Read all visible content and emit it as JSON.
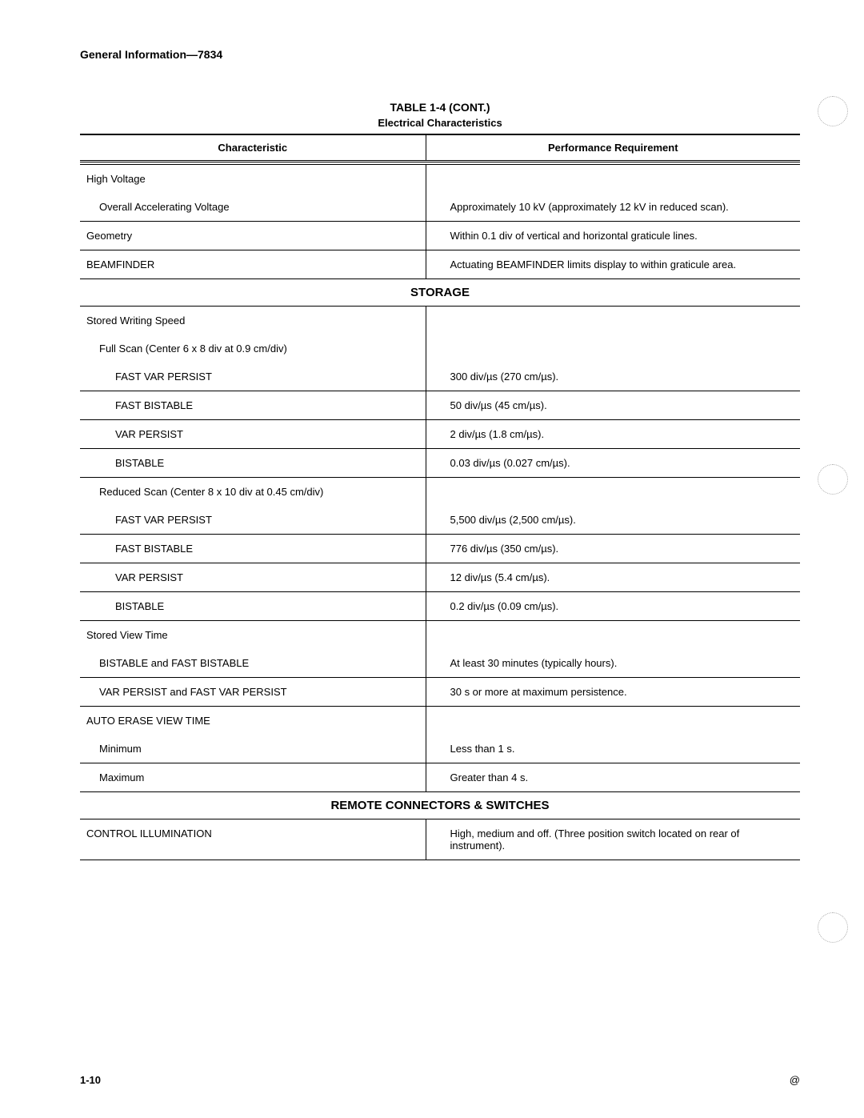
{
  "header": "General Information—7834",
  "table_title": "TABLE 1-4 (CONT.)",
  "table_subtitle": "Electrical Characteristics",
  "col_headers": [
    "Characteristic",
    "Performance Requirement"
  ],
  "sections": [
    {
      "rows": [
        {
          "c": "High Voltage",
          "r": "",
          "indent": 0,
          "noborder": true
        },
        {
          "c": "Overall Accelerating Voltage",
          "r": "Approximately 10 kV (approximately 12 kV in reduced scan).",
          "indent": 1
        },
        {
          "c": "Geometry",
          "r": "Within 0.1 div of vertical and horizontal graticule lines.",
          "indent": 0
        },
        {
          "c": "BEAMFINDER",
          "r": "Actuating BEAMFINDER limits display to within graticule area.",
          "indent": 0
        }
      ]
    },
    {
      "title": "STORAGE",
      "rows": [
        {
          "c": "Stored Writing Speed",
          "r": "",
          "indent": 0,
          "noborder": true
        },
        {
          "c": "Full Scan (Center 6 x 8 div at 0.9 cm/div)",
          "r": "",
          "indent": 1,
          "noborder": true
        },
        {
          "c": "FAST VAR PERSIST",
          "r": "300 div/µs (270 cm/µs).",
          "indent": 2
        },
        {
          "c": "FAST BISTABLE",
          "r": "50 div/µs (45 cm/µs).",
          "indent": 2
        },
        {
          "c": "VAR PERSIST",
          "r": "2 div/µs (1.8 cm/µs).",
          "indent": 2
        },
        {
          "c": "BISTABLE",
          "r": "0.03 div/µs (0.027 cm/µs).",
          "indent": 2
        },
        {
          "c": "Reduced Scan (Center 8 x 10 div at 0.45 cm/div)",
          "r": "",
          "indent": 1,
          "noborder": true
        },
        {
          "c": "FAST VAR PERSIST",
          "r": "5,500 div/µs (2,500 cm/µs).",
          "indent": 2
        },
        {
          "c": "FAST BISTABLE",
          "r": "776 div/µs (350 cm/µs).",
          "indent": 2
        },
        {
          "c": "VAR PERSIST",
          "r": "12 div/µs (5.4 cm/µs).",
          "indent": 2
        },
        {
          "c": "BISTABLE",
          "r": "0.2 div/µs (0.09 cm/µs).",
          "indent": 2
        },
        {
          "c": "Stored View Time",
          "r": "",
          "indent": 0,
          "noborder": true
        },
        {
          "c": "BISTABLE and FAST BISTABLE",
          "r": "At least 30 minutes (typically hours).",
          "indent": 1
        },
        {
          "c": "VAR PERSIST and FAST VAR PERSIST",
          "r": "30 s or more at maximum persistence.",
          "indent": 1
        },
        {
          "c": "AUTO ERASE VIEW TIME",
          "r": "",
          "indent": 0,
          "noborder": true
        },
        {
          "c": "Minimum",
          "r": "Less than 1 s.",
          "indent": 1
        },
        {
          "c": "Maximum",
          "r": "Greater than 4 s.",
          "indent": 1
        }
      ]
    },
    {
      "title": "REMOTE CONNECTORS & SWITCHES",
      "rows": [
        {
          "c": "CONTROL ILLUMINATION",
          "r": "High, medium and off. (Three position switch located on rear of instrument).",
          "indent": 0
        }
      ]
    }
  ],
  "page_number": "1-10",
  "at_symbol": "@"
}
